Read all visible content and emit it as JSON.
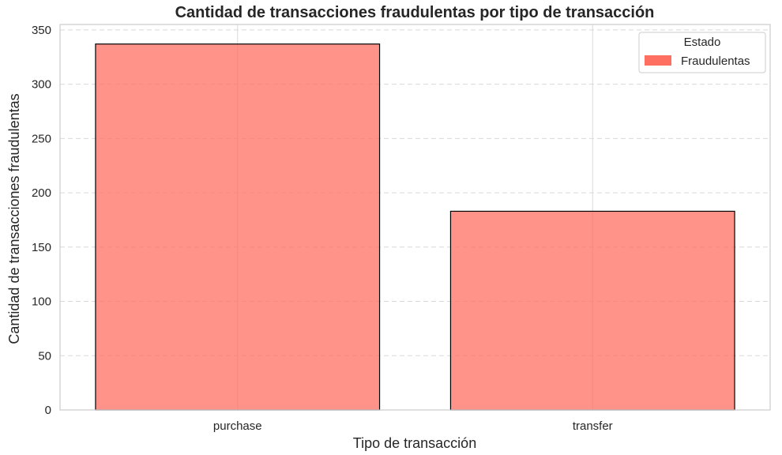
{
  "chart_data": {
    "type": "bar",
    "title": "Cantidad de transacciones fraudulentas por tipo de transacción",
    "xlabel": "Tipo de transacción",
    "ylabel": "Cantidad de transacciones fraudulentas",
    "categories": [
      "purchase",
      "transfer"
    ],
    "series": [
      {
        "name": "Fraudulentas",
        "values": [
          337,
          183
        ]
      }
    ],
    "ylim": [
      0,
      355
    ],
    "yticks": [
      0,
      50,
      100,
      150,
      200,
      250,
      300,
      350
    ],
    "grid": true,
    "legend": {
      "title": "Estado",
      "placement": "top-right"
    },
    "colors": {
      "bar": "#ff6f61",
      "bar_edge": "#000000",
      "grid": "#d9d9d9",
      "frame": "#cccccc"
    }
  }
}
